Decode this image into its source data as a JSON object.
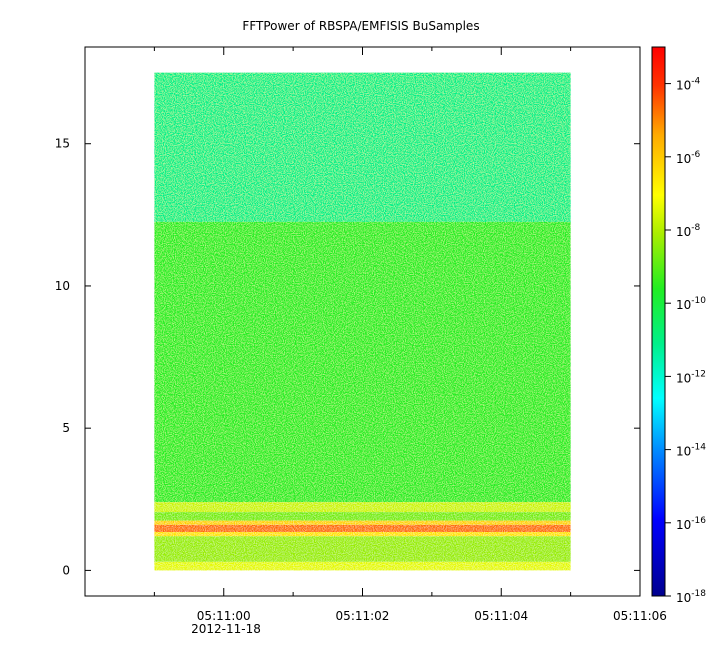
{
  "chart_data": {
    "type": "heatmap",
    "title": "FFTPower of RBSPA/EMFISIS  BuSamples",
    "x": {
      "date_label": "2012-11-18",
      "range": [
        "05:10:58.0",
        "05:11:06.0"
      ],
      "data_extent": [
        "05:10:59.0",
        "05:11:05.0"
      ],
      "tick_labels": [
        "05:11:00",
        "05:11:02",
        "05:11:04",
        "05:11:06"
      ],
      "tick_values": [
        2,
        4,
        6,
        8
      ],
      "minor_tick_values": [
        1,
        3,
        5,
        7
      ]
    },
    "y": {
      "range": [
        -0.9,
        18.4
      ],
      "data_extent": [
        0,
        17.5
      ],
      "tick_values": [
        0,
        5,
        10,
        15
      ],
      "tick_labels": [
        "0",
        "5",
        "10",
        "15"
      ]
    },
    "colorbar": {
      "scale": "log",
      "range": [
        1e-18,
        0.001
      ],
      "ticks": [
        {
          "base": "10",
          "exp": "-18",
          "value": 1e-18
        },
        {
          "base": "10",
          "exp": "-16",
          "value": 1e-16
        },
        {
          "base": "10",
          "exp": "-14",
          "value": 1e-14
        },
        {
          "base": "10",
          "exp": "-12",
          "value": 1e-12
        },
        {
          "base": "10",
          "exp": "-10",
          "value": 1e-10
        },
        {
          "base": "10",
          "exp": "-8",
          "value": 1e-08
        },
        {
          "base": "10",
          "exp": "-6",
          "value": 1e-06
        },
        {
          "base": "10",
          "exp": "-4",
          "value": 0.0001
        }
      ]
    },
    "bands": [
      {
        "y_min": 12.25,
        "y_max": 17.5,
        "log_power": -12.0
      },
      {
        "y_min": 2.4,
        "y_max": 12.25,
        "log_power": -10.5
      },
      {
        "y_min": 2.05,
        "y_max": 2.4,
        "log_power": -8.6
      },
      {
        "y_min": 1.75,
        "y_max": 2.05,
        "log_power": -9.6
      },
      {
        "y_min": 1.6,
        "y_max": 1.75,
        "log_power": -7.2
      },
      {
        "y_min": 1.35,
        "y_max": 1.6,
        "log_power": -5.7
      },
      {
        "y_min": 1.2,
        "y_max": 1.35,
        "log_power": -7.5
      },
      {
        "y_min": 0.3,
        "y_max": 1.2,
        "log_power": -9.2
      },
      {
        "y_min": 0.0,
        "y_max": 0.3,
        "log_power": -8.3
      }
    ]
  }
}
